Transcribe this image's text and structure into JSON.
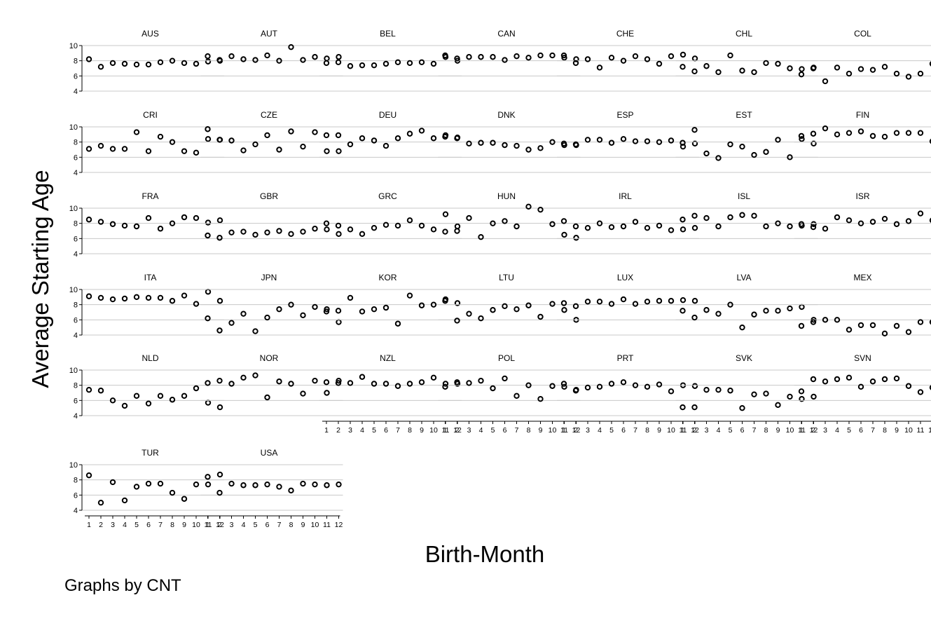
{
  "chart_data": {
    "type": "scatter",
    "x": [
      1,
      2,
      3,
      4,
      5,
      6,
      7,
      8,
      9,
      10,
      11,
      12
    ],
    "xlabel": "Birth-Month",
    "ylabel": "Average Starting Age",
    "ylim": [
      4,
      10
    ],
    "yticks": [
      4,
      6,
      8,
      10
    ],
    "grid": true,
    "note": "Graphs by CNT",
    "panels": [
      {
        "name": "AUS",
        "values": [
          8.2,
          7.2,
          7.7,
          7.6,
          7.5,
          7.5,
          7.8,
          8.0,
          7.7,
          7.6,
          7.9,
          8.0
        ]
      },
      {
        "name": "AUT",
        "values": [
          8.6,
          8.1,
          8.6,
          8.2,
          8.1,
          8.7,
          8.0,
          9.8,
          8.1,
          8.5,
          8.3,
          8.5
        ]
      },
      {
        "name": "BEL",
        "values": [
          7.7,
          7.8,
          7.3,
          7.4,
          7.4,
          7.6,
          7.8,
          7.7,
          7.8,
          7.6,
          8.5,
          8.0
        ]
      },
      {
        "name": "CAN",
        "values": [
          8.7,
          8.3,
          8.5,
          8.5,
          8.5,
          8.1,
          8.6,
          8.4,
          8.7,
          8.7,
          8.4,
          8.2
        ]
      },
      {
        "name": "CHE",
        "values": [
          8.7,
          7.7,
          8.2,
          7.1,
          8.4,
          8.0,
          8.6,
          8.2,
          7.6,
          8.6,
          8.8,
          8.3
        ]
      },
      {
        "name": "CHL",
        "values": [
          7.2,
          6.6,
          7.3,
          6.5,
          8.7,
          6.7,
          6.5,
          7.7,
          7.6,
          7.0,
          6.9,
          7.1
        ]
      },
      {
        "name": "COL",
        "values": [
          6.2,
          7.0,
          5.3,
          7.1,
          6.3,
          6.9,
          6.8,
          7.2,
          6.3,
          5.9,
          6.3,
          7.6
        ]
      },
      {
        "name": "CRI",
        "values": [
          7.1,
          7.5,
          7.1,
          7.1,
          9.3,
          6.8,
          8.7,
          8.0,
          6.8,
          6.6,
          8.4,
          8.3
        ]
      },
      {
        "name": "CZE",
        "values": [
          9.7,
          8.3,
          8.2,
          6.9,
          7.7,
          8.9,
          7.0,
          9.4,
          7.4,
          9.3,
          6.8,
          6.8
        ]
      },
      {
        "name": "DEU",
        "values": [
          8.9,
          8.9,
          7.7,
          8.5,
          8.2,
          7.5,
          8.5,
          9.1,
          9.5,
          8.5,
          8.9,
          8.6
        ]
      },
      {
        "name": "DNK",
        "values": [
          8.7,
          8.5,
          7.8,
          7.9,
          7.9,
          7.6,
          7.5,
          7.0,
          7.2,
          8.0,
          7.6,
          7.6
        ]
      },
      {
        "name": "ESP",
        "values": [
          7.8,
          7.7,
          8.3,
          8.3,
          7.9,
          8.4,
          8.1,
          8.1,
          8.0,
          8.2,
          7.4,
          7.8
        ]
      },
      {
        "name": "EST",
        "values": [
          7.9,
          9.6,
          6.5,
          5.9,
          7.7,
          7.4,
          6.3,
          6.7,
          8.3,
          6.0,
          8.4,
          7.8
        ]
      },
      {
        "name": "FIN",
        "values": [
          8.8,
          9.1,
          9.8,
          9.0,
          9.2,
          9.4,
          8.8,
          8.7,
          9.2,
          9.2,
          9.2,
          8.1
        ]
      },
      {
        "name": "FRA",
        "values": [
          8.5,
          8.2,
          7.9,
          7.7,
          7.6,
          8.7,
          7.3,
          8.0,
          8.8,
          8.7,
          8.1,
          8.4
        ]
      },
      {
        "name": "GBR",
        "values": [
          6.4,
          6.1,
          6.8,
          6.9,
          6.5,
          6.8,
          7.0,
          6.6,
          6.9,
          7.3,
          7.2,
          6.6
        ]
      },
      {
        "name": "GRC",
        "values": [
          8.0,
          7.7,
          7.2,
          6.6,
          7.4,
          7.8,
          7.7,
          8.4,
          7.7,
          7.2,
          9.2,
          7.6
        ]
      },
      {
        "name": "HUN",
        "values": [
          6.9,
          7.0,
          8.7,
          6.2,
          8.0,
          8.3,
          7.6,
          10.2,
          9.8,
          7.9,
          6.5,
          6.1
        ]
      },
      {
        "name": "IRL",
        "values": [
          8.3,
          7.6,
          7.4,
          8.0,
          7.5,
          7.6,
          8.2,
          7.4,
          7.7,
          7.1,
          7.2,
          7.4
        ]
      },
      {
        "name": "ISL",
        "values": [
          8.5,
          9.0,
          8.7,
          7.6,
          8.8,
          9.1,
          9.0,
          7.6,
          8.0,
          7.6,
          7.7,
          7.9
        ]
      },
      {
        "name": "ISR",
        "values": [
          7.9,
          7.5,
          7.3,
          8.8,
          8.4,
          8.0,
          8.2,
          8.6,
          7.9,
          8.3,
          9.3,
          8.4
        ]
      },
      {
        "name": "ITA",
        "values": [
          9.1,
          8.9,
          8.7,
          8.8,
          9.0,
          8.9,
          8.9,
          8.5,
          9.2,
          8.1,
          9.7,
          8.5
        ]
      },
      {
        "name": "JPN",
        "values": [
          6.2,
          4.6,
          5.6,
          6.8,
          4.5,
          6.3,
          7.4,
          8.0,
          6.6,
          7.7,
          7.4,
          5.7
        ]
      },
      {
        "name": "KOR",
        "values": [
          7.1,
          7.2,
          8.9,
          7.1,
          7.4,
          7.6,
          5.5,
          9.2,
          7.9,
          8.0,
          8.7,
          8.2
        ]
      },
      {
        "name": "LTU",
        "values": [
          8.5,
          5.9,
          6.8,
          6.2,
          7.3,
          7.8,
          7.4,
          7.9,
          6.4,
          8.1,
          7.3,
          6.0
        ]
      },
      {
        "name": "LUX",
        "values": [
          8.2,
          7.8,
          8.4,
          8.4,
          8.1,
          8.7,
          8.1,
          8.4,
          8.5,
          8.5,
          8.6,
          8.5
        ]
      },
      {
        "name": "LVA",
        "values": [
          7.2,
          6.3,
          7.3,
          6.8,
          8.0,
          5.0,
          6.7,
          7.2,
          7.2,
          7.5,
          7.7,
          6.0
        ]
      },
      {
        "name": "MEX",
        "values": [
          5.2,
          5.7,
          6.0,
          6.0,
          4.7,
          5.3,
          5.3,
          4.2,
          5.2,
          4.4,
          5.7,
          5.7
        ]
      },
      {
        "name": "NLD",
        "values": [
          7.4,
          7.3,
          6.0,
          5.3,
          6.6,
          5.6,
          6.6,
          6.1,
          6.6,
          7.6,
          5.7,
          5.1
        ]
      },
      {
        "name": "NOR",
        "values": [
          8.3,
          8.6,
          8.2,
          9.0,
          9.3,
          6.4,
          8.5,
          8.2,
          6.9,
          8.6,
          7.0,
          8.6
        ]
      },
      {
        "name": "NZL",
        "values": [
          8.4,
          8.3,
          8.3,
          9.1,
          8.2,
          8.2,
          7.9,
          8.2,
          8.4,
          9.0,
          8.2,
          8.2
        ]
      },
      {
        "name": "POL",
        "values": [
          7.8,
          8.4,
          8.3,
          8.6,
          7.6,
          8.9,
          6.6,
          8.0,
          6.2,
          7.9,
          7.8,
          7.4
        ]
      },
      {
        "name": "PRT",
        "values": [
          8.2,
          7.3,
          7.7,
          7.8,
          8.2,
          8.4,
          8.0,
          7.8,
          8.1,
          7.2,
          8.0,
          7.9
        ]
      },
      {
        "name": "SVK",
        "values": [
          5.1,
          5.1,
          7.4,
          7.4,
          7.3,
          5.0,
          6.8,
          6.9,
          5.4,
          6.5,
          6.2,
          6.5
        ]
      },
      {
        "name": "SVN",
        "values": [
          7.2,
          8.8,
          8.5,
          8.8,
          9.0,
          7.8,
          8.5,
          8.8,
          8.9,
          7.9,
          7.1,
          7.7
        ]
      },
      {
        "name": "TUR",
        "values": [
          8.6,
          5.0,
          7.7,
          5.3,
          7.1,
          7.5,
          7.5,
          6.3,
          5.5,
          7.4,
          7.4,
          8.7
        ]
      },
      {
        "name": "USA",
        "values": [
          8.4,
          6.3,
          7.5,
          7.3,
          7.3,
          7.4,
          7.1,
          6.6,
          7.5,
          7.4,
          7.3,
          7.4
        ]
      }
    ]
  }
}
